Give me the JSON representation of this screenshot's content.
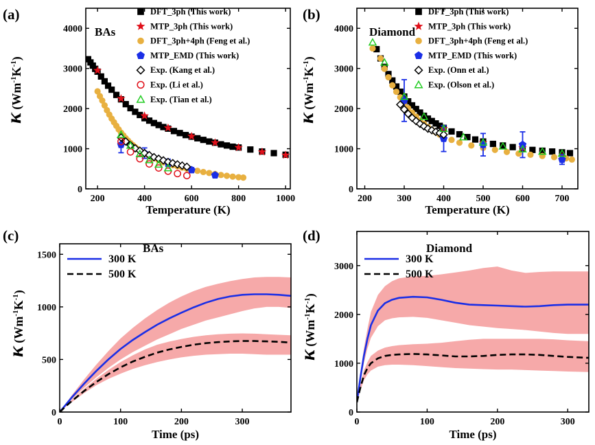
{
  "chart_data": [
    {
      "id": "a",
      "type": "scatter",
      "panel_label": "(a)",
      "title": "BAs",
      "xlabel": "Temperature (K)",
      "ylabel": {
        "symbol": "κ",
        "unit": "(Wm",
        "sup1": "-1",
        "mid": "K",
        "sup2": "-1",
        "close": ")"
      },
      "xlim": [
        150,
        1020
      ],
      "ylim": [
        0,
        4500
      ],
      "xticks": [
        200,
        400,
        600,
        800,
        1000
      ],
      "yticks": [
        0,
        1000,
        2000,
        3000,
        4000
      ],
      "legend_position": "top-right",
      "series": [
        {
          "name": "DFT_3ph (This work)",
          "marker": "square",
          "color": "#000000",
          "x": [
            160,
            170,
            180,
            190,
            200,
            215,
            230,
            245,
            260,
            280,
            300,
            320,
            340,
            360,
            380,
            400,
            420,
            440,
            460,
            480,
            500,
            525,
            550,
            575,
            600,
            625,
            650,
            675,
            700,
            725,
            750,
            775,
            800,
            850,
            900,
            950,
            1000
          ],
          "y": [
            3230,
            3150,
            3070,
            2990,
            2920,
            2800,
            2680,
            2570,
            2470,
            2340,
            2230,
            2110,
            2010,
            1920,
            1840,
            1760,
            1700,
            1640,
            1590,
            1540,
            1500,
            1440,
            1390,
            1340,
            1300,
            1260,
            1220,
            1180,
            1150,
            1110,
            1080,
            1050,
            1030,
            980,
            930,
            890,
            850
          ]
        },
        {
          "name": "MTP_3ph (This work)",
          "marker": "star",
          "color": "#e0101a",
          "x": [
            200,
            300,
            400,
            500,
            600,
            700,
            800,
            900,
            1000
          ],
          "y": [
            2950,
            2250,
            1820,
            1520,
            1310,
            1150,
            1030,
            920,
            840
          ]
        },
        {
          "name": "DFT_3ph+4ph (Feng et al.)",
          "marker": "circle",
          "color": "#e8b040",
          "x": [
            200,
            210,
            220,
            230,
            240,
            250,
            260,
            270,
            280,
            290,
            300,
            310,
            320,
            330,
            340,
            350,
            360,
            370,
            380,
            390,
            400,
            420,
            440,
            460,
            480,
            500,
            520,
            540,
            560,
            580,
            600,
            625,
            650,
            675,
            700,
            725,
            750,
            775,
            800,
            820
          ],
          "y": [
            2430,
            2310,
            2200,
            2080,
            1960,
            1850,
            1750,
            1660,
            1570,
            1480,
            1400,
            1330,
            1260,
            1200,
            1140,
            1090,
            1040,
            990,
            950,
            910,
            870,
            810,
            760,
            710,
            660,
            620,
            590,
            560,
            530,
            500,
            480,
            450,
            420,
            395,
            370,
            345,
            325,
            305,
            290,
            280
          ]
        },
        {
          "name": "MTP_EMD  (This work)",
          "marker": "pentagon",
          "color": "#1a2ee6",
          "x": [
            300,
            400,
            500,
            600,
            700
          ],
          "y": [
            1100,
            890,
            650,
            470,
            340
          ],
          "err": [
            200,
            130,
            90,
            60,
            50
          ]
        },
        {
          "name": "Exp. (Kang et al.)",
          "marker": "diamond-open",
          "color": "#000000",
          "x": [
            300,
            320,
            340,
            360,
            380,
            400,
            420,
            440,
            460,
            480,
            500,
            520,
            540,
            560,
            580
          ],
          "y": [
            1280,
            1180,
            1090,
            1010,
            950,
            890,
            840,
            790,
            750,
            710,
            670,
            640,
            610,
            580,
            550
          ]
        },
        {
          "name": "Exp. (Li et al.)",
          "marker": "circle-open",
          "color": "#e0101a",
          "x": [
            300,
            340,
            380,
            420,
            460,
            500,
            540,
            580
          ],
          "y": [
            1180,
            920,
            750,
            620,
            520,
            440,
            380,
            330
          ]
        },
        {
          "name": "Exp. (Tian et al.)",
          "marker": "triangle-open",
          "color": "#22cc22",
          "x": [
            300,
            340,
            380,
            420,
            460,
            500
          ],
          "y": [
            1350,
            1080,
            870,
            720,
            610,
            520
          ]
        }
      ]
    },
    {
      "id": "b",
      "type": "scatter",
      "panel_label": "(b)",
      "title": "Diamond",
      "xlabel": "Temperature (K)",
      "ylabel": {
        "symbol": "κ",
        "unit": "(Wm",
        "sup1": "-1",
        "mid": "K",
        "sup2": "-1",
        "close": ")"
      },
      "xlim": [
        180,
        740
      ],
      "ylim": [
        0,
        4500
      ],
      "xticks": [
        200,
        300,
        400,
        500,
        600,
        700
      ],
      "yticks": [
        0,
        1000,
        2000,
        3000,
        4000
      ],
      "legend_position": "top-right",
      "series": [
        {
          "name": "DFT_3ph (This work)",
          "marker": "square",
          "color": "#000000",
          "x": [
            230,
            240,
            250,
            260,
            270,
            280,
            290,
            300,
            310,
            320,
            330,
            340,
            350,
            360,
            370,
            380,
            390,
            400,
            420,
            440,
            460,
            480,
            500,
            525,
            550,
            575,
            600,
            625,
            650,
            675,
            700,
            720
          ],
          "y": [
            3480,
            3250,
            3040,
            2860,
            2700,
            2550,
            2420,
            2300,
            2180,
            2080,
            1990,
            1900,
            1820,
            1750,
            1690,
            1630,
            1570,
            1520,
            1430,
            1360,
            1290,
            1230,
            1180,
            1120,
            1080,
            1040,
            1000,
            970,
            950,
            930,
            910,
            890
          ]
        },
        {
          "name": "MTP_3ph (This work)",
          "marker": "star",
          "color": "#e0101a",
          "x": [
            300,
            400,
            500,
            600,
            700
          ],
          "y": [
            2200,
            1500,
            1150,
            1020,
            800
          ]
        },
        {
          "name": "DFT_3ph+4ph (Feng et al.)",
          "marker": "circle",
          "color": "#e8b040",
          "x": [
            220,
            240,
            250,
            260,
            270,
            280,
            290,
            300,
            310,
            320,
            330,
            340,
            350,
            360,
            370,
            380,
            390,
            400,
            420,
            440,
            470,
            500,
            530,
            560,
            590,
            620,
            650,
            680,
            710,
            725
          ],
          "y": [
            3500,
            3250,
            2990,
            2780,
            2580,
            2420,
            2280,
            2130,
            2010,
            1900,
            1800,
            1700,
            1620,
            1540,
            1470,
            1410,
            1350,
            1300,
            1220,
            1150,
            1080,
            1020,
            970,
            920,
            880,
            850,
            820,
            790,
            760,
            730
          ]
        },
        {
          "name": "MTP_EMD  (This work)",
          "marker": "pentagon",
          "color": "#1a2ee6",
          "x": [
            300,
            400,
            500,
            600,
            700
          ],
          "y": [
            2200,
            1250,
            1100,
            1100,
            730
          ],
          "err": [
            520,
            320,
            280,
            320,
            120
          ]
        },
        {
          "name": "Exp. (Onn et al.)",
          "marker": "diamond-open",
          "color": "#000000",
          "x": [
            290,
            300,
            310,
            320,
            330,
            340,
            350,
            360,
            370,
            380,
            390,
            400
          ],
          "y": [
            2100,
            1980,
            1870,
            1770,
            1690,
            1620,
            1560,
            1500,
            1460,
            1420,
            1390,
            1350
          ]
        },
        {
          "name": "Exp. (Olson et al.)",
          "marker": "triangle-open",
          "color": "#22cc22",
          "x": [
            220,
            250,
            300,
            350,
            400,
            450,
            500,
            550,
            600,
            650,
            700
          ],
          "y": [
            3650,
            3150,
            2300,
            1800,
            1500,
            1290,
            1160,
            1060,
            990,
            930,
            880
          ]
        }
      ]
    },
    {
      "id": "c",
      "type": "line",
      "panel_label": "(c)",
      "title": "BAs",
      "xlabel": "Time (ps)",
      "ylabel": {
        "symbol": "κ",
        "unit": "(Wm",
        "sup1": "-1",
        "mid": "K",
        "sup2": "-1",
        "close": ")"
      },
      "xlim": [
        0,
        380
      ],
      "ylim": [
        0,
        1600
      ],
      "xticks": [
        0,
        100,
        200,
        300
      ],
      "yticks": [
        0,
        500,
        1000,
        1500
      ],
      "legend_position": "top-left",
      "series": [
        {
          "name": "300 K",
          "style": "solid",
          "color": "#1a2ee6",
          "band_color": "#f5a0a0",
          "x": [
            0,
            10,
            20,
            40,
            60,
            80,
            100,
            120,
            140,
            160,
            180,
            200,
            220,
            240,
            260,
            280,
            300,
            320,
            340,
            360,
            380
          ],
          "y": [
            0,
            70,
            140,
            270,
            390,
            500,
            600,
            685,
            760,
            830,
            890,
            945,
            995,
            1040,
            1075,
            1100,
            1115,
            1120,
            1120,
            1115,
            1105
          ],
          "band_lower": [
            0,
            60,
            120,
            230,
            330,
            420,
            500,
            570,
            630,
            690,
            740,
            790,
            830,
            870,
            900,
            930,
            960,
            985,
            1000,
            1000,
            990
          ],
          "band_upper": [
            0,
            80,
            160,
            310,
            450,
            580,
            700,
            800,
            890,
            970,
            1040,
            1100,
            1150,
            1190,
            1220,
            1245,
            1265,
            1280,
            1285,
            1285,
            1280
          ]
        },
        {
          "name": "500 K",
          "style": "dashed",
          "color": "#000000",
          "band_color": "#f5a0a0",
          "x": [
            0,
            10,
            20,
            40,
            60,
            80,
            100,
            120,
            140,
            160,
            180,
            200,
            220,
            240,
            260,
            280,
            300,
            320,
            340,
            360,
            380
          ],
          "y": [
            0,
            55,
            105,
            200,
            285,
            360,
            425,
            480,
            525,
            565,
            595,
            620,
            640,
            655,
            665,
            672,
            675,
            675,
            672,
            668,
            660
          ],
          "band_lower": [
            0,
            50,
            95,
            180,
            255,
            315,
            365,
            410,
            445,
            475,
            500,
            520,
            535,
            545,
            550,
            555,
            555,
            550,
            545,
            545,
            545
          ],
          "band_upper": [
            0,
            60,
            115,
            220,
            315,
            400,
            475,
            540,
            595,
            640,
            670,
            695,
            715,
            730,
            740,
            745,
            748,
            745,
            740,
            735,
            730
          ]
        }
      ]
    },
    {
      "id": "d",
      "type": "line",
      "panel_label": "(d)",
      "title": "Diamond",
      "xlabel": "Time (ps)",
      "ylabel": {
        "symbol": "κ",
        "unit": "(Wm",
        "sup1": "-1",
        "mid": "K",
        "sup2": "-1",
        "close": ")"
      },
      "xlim": [
        0,
        330
      ],
      "ylim": [
        0,
        3700
      ],
      "xticks": [
        0,
        100,
        200,
        300
      ],
      "yticks": [
        0,
        1000,
        2000,
        3000
      ],
      "legend_position": "top-left",
      "series": [
        {
          "name": "300 K",
          "style": "solid",
          "color": "#1a2ee6",
          "band_color": "#f5a0a0",
          "x": [
            0,
            5,
            10,
            15,
            20,
            30,
            40,
            50,
            60,
            80,
            100,
            120,
            140,
            160,
            180,
            200,
            220,
            240,
            260,
            280,
            300,
            330
          ],
          "y": [
            200,
            700,
            1150,
            1500,
            1780,
            2080,
            2230,
            2300,
            2340,
            2360,
            2350,
            2300,
            2240,
            2200,
            2190,
            2180,
            2170,
            2160,
            2170,
            2190,
            2200,
            2200
          ],
          "band_lower": [
            180,
            620,
            1000,
            1300,
            1520,
            1760,
            1880,
            1920,
            1940,
            1950,
            1930,
            1880,
            1830,
            1780,
            1750,
            1720,
            1700,
            1680,
            1650,
            1620,
            1600,
            1600
          ],
          "band_upper": [
            220,
            780,
            1300,
            1700,
            2050,
            2400,
            2580,
            2680,
            2740,
            2780,
            2790,
            2820,
            2860,
            2900,
            2950,
            2980,
            2900,
            2850,
            2870,
            2880,
            2880,
            2880
          ]
        },
        {
          "name": "500 K",
          "style": "dashed",
          "color": "#000000",
          "band_color": "#f5a0a0",
          "x": [
            0,
            5,
            10,
            15,
            20,
            30,
            40,
            50,
            60,
            80,
            100,
            120,
            140,
            160,
            180,
            200,
            220,
            240,
            260,
            280,
            300,
            330
          ],
          "y": [
            200,
            500,
            750,
            900,
            1000,
            1100,
            1150,
            1170,
            1180,
            1190,
            1180,
            1160,
            1140,
            1140,
            1150,
            1170,
            1180,
            1180,
            1170,
            1150,
            1130,
            1110
          ],
          "band_lower": [
            180,
            440,
            650,
            770,
            850,
            930,
            960,
            970,
            970,
            960,
            940,
            920,
            900,
            890,
            880,
            870,
            870,
            860,
            850,
            840,
            830,
            820
          ],
          "band_upper": [
            220,
            560,
            850,
            1020,
            1150,
            1260,
            1320,
            1350,
            1370,
            1390,
            1400,
            1420,
            1450,
            1480,
            1500,
            1500,
            1500,
            1500,
            1500,
            1490,
            1470,
            1450
          ]
        }
      ]
    }
  ]
}
